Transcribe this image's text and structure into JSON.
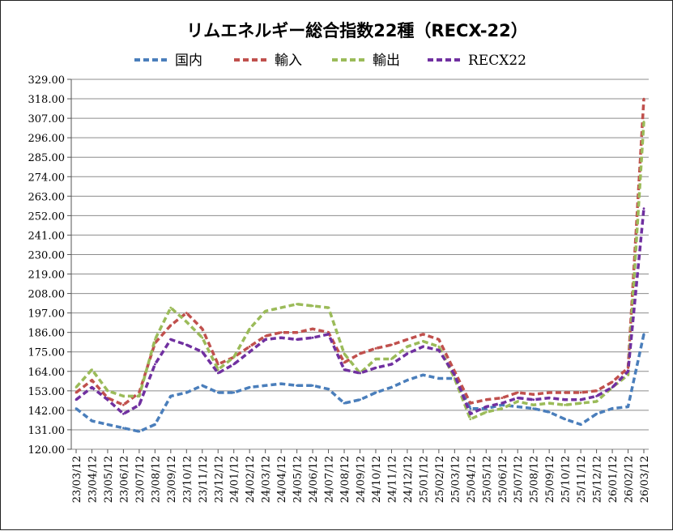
{
  "chart_data": {
    "type": "line",
    "title": "リムエネルギー総合指数22種（RECX-22）",
    "ylim": [
      120,
      329
    ],
    "yticks": [
      "329.00",
      "318.00",
      "307.00",
      "296.00",
      "285.00",
      "274.00",
      "263.00",
      "252.00",
      "241.00",
      "230.00",
      "219.00",
      "208.00",
      "197.00",
      "186.00",
      "175.00",
      "164.00",
      "153.00",
      "142.00",
      "131.00",
      "120.00"
    ],
    "x_labels": [
      "23/03/12",
      "23/04/12",
      "23/05/12",
      "23/06/12",
      "23/07/12",
      "23/08/12",
      "23/09/12",
      "23/10/12",
      "23/11/12",
      "23/12/12",
      "24/01/12",
      "24/02/12",
      "24/03/12",
      "24/04/12",
      "24/05/12",
      "24/06/12",
      "24/07/12",
      "24/08/12",
      "24/09/12",
      "24/10/12",
      "24/11/12",
      "24/12/12",
      "25/01/12",
      "25/02/12",
      "25/03/12",
      "25/04/12",
      "25/05/12",
      "25/06/12",
      "25/07/12",
      "25/08/12",
      "25/09/12",
      "25/10/12",
      "25/11/12",
      "25/12/12",
      "26/01/12",
      "26/02/12",
      "26/03/12"
    ],
    "grid": "horizontal",
    "legend_position": "top",
    "series": [
      {
        "name": "国内",
        "color": "#4a7ebb",
        "values": [
          143,
          136,
          134,
          132,
          130,
          134,
          150,
          152,
          156,
          152,
          152,
          155,
          156,
          157,
          156,
          156,
          154,
          146,
          148,
          152,
          155,
          159,
          162,
          160,
          160,
          143,
          143,
          145,
          144,
          143,
          141,
          137,
          134,
          140,
          143,
          144,
          185
        ]
      },
      {
        "name": "輸入",
        "color": "#c0504d",
        "values": [
          152,
          159,
          149,
          145,
          152,
          180,
          190,
          197,
          188,
          168,
          172,
          178,
          184,
          186,
          186,
          188,
          186,
          169,
          174,
          177,
          179,
          182,
          185,
          182,
          164,
          146,
          148,
          149,
          152,
          151,
          152,
          152,
          152,
          153,
          158,
          166,
          318
        ]
      },
      {
        "name": "輸出",
        "color": "#9bbb59",
        "values": [
          155,
          165,
          153,
          150,
          150,
          182,
          200,
          192,
          183,
          165,
          172,
          188,
          198,
          200,
          202,
          201,
          200,
          174,
          163,
          171,
          171,
          178,
          181,
          178,
          160,
          137,
          141,
          143,
          147,
          145,
          146,
          145,
          146,
          147,
          155,
          162,
          305
        ]
      },
      {
        "name": "RECX22",
        "color": "#7030a0",
        "values": [
          148,
          155,
          148,
          140,
          145,
          168,
          182,
          179,
          175,
          163,
          168,
          175,
          182,
          183,
          182,
          183,
          185,
          165,
          163,
          166,
          168,
          174,
          178,
          176,
          162,
          140,
          144,
          146,
          149,
          148,
          149,
          148,
          148,
          150,
          155,
          164,
          256
        ]
      }
    ]
  }
}
